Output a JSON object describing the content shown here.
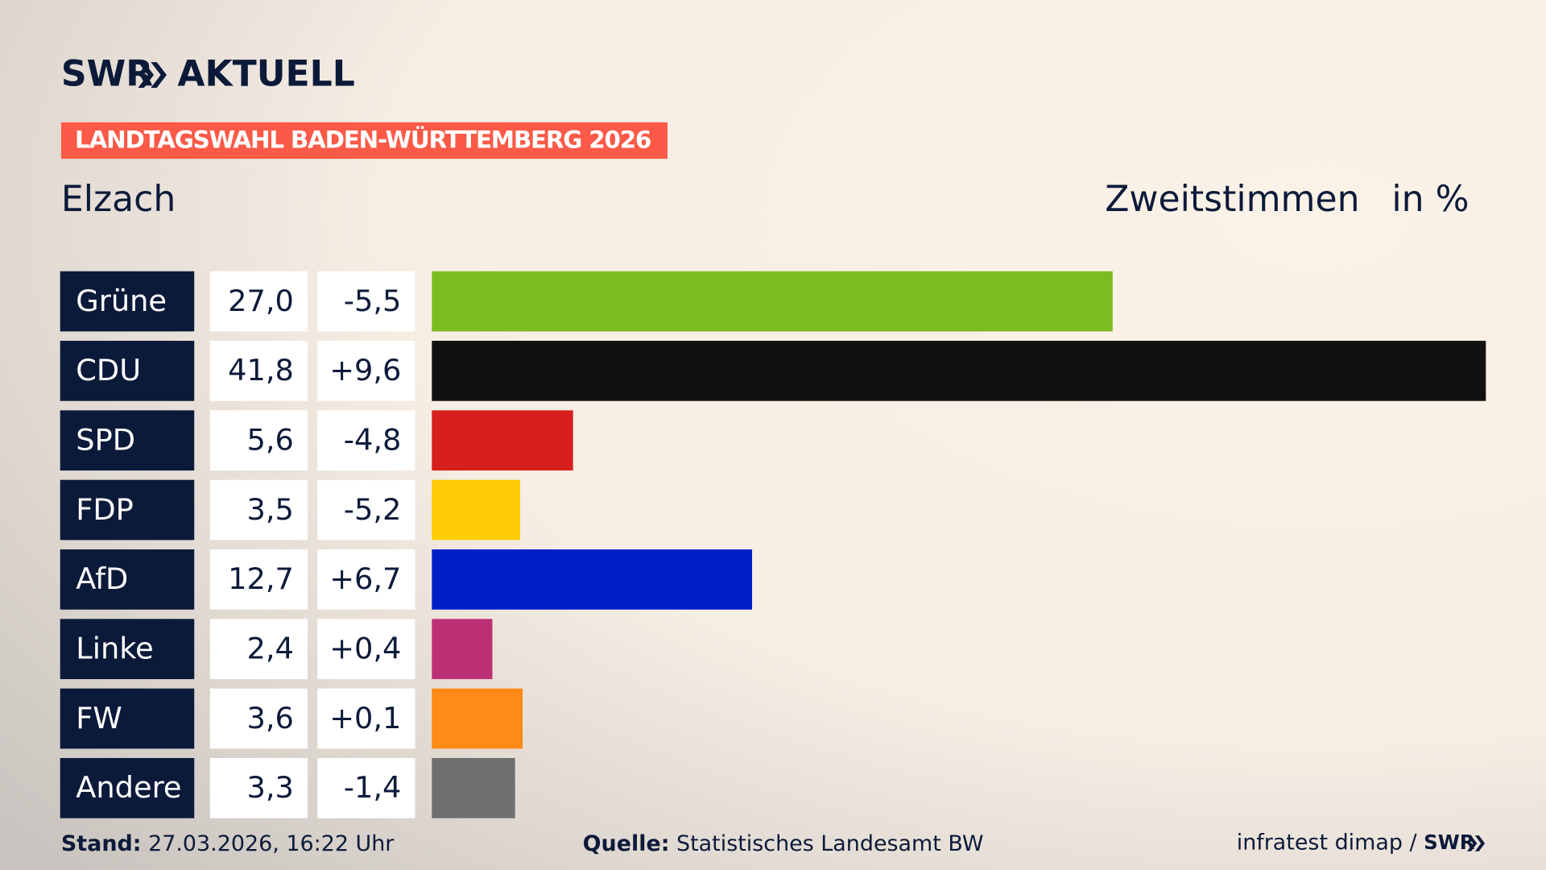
{
  "brand": "SWR",
  "brand_suffix": "AKTUELL",
  "chart_data": {
    "type": "bar",
    "kicker": "LANDTAGSWAHL BADEN-WÜRTTEMBERG 2026",
    "title": "Elzach",
    "subtitle": "Zweitstimmen",
    "unit": "in %",
    "categories": [
      "Grüne",
      "CDU",
      "SPD",
      "FDP",
      "AfD",
      "Linke",
      "FW",
      "Andere"
    ],
    "values": [
      27.0,
      41.8,
      5.6,
      3.5,
      12.7,
      2.4,
      3.6,
      3.3
    ],
    "value_labels": [
      "27,0",
      "41,8",
      "5,6",
      "3,5",
      "12,7",
      "2,4",
      "3,6",
      "3,3"
    ],
    "changes": [
      -5.5,
      9.6,
      -4.8,
      -5.2,
      6.7,
      0.4,
      0.1,
      -1.4
    ],
    "change_labels": [
      "-5,5",
      "+9,6",
      "-4,8",
      "-5,2",
      "+6,7",
      "+0,4",
      "+0,1",
      "-1,4"
    ],
    "colors": [
      "#7bbd1e",
      "#111111",
      "#d7201d",
      "#ffcc07",
      "#0020c7",
      "#bd3075",
      "#ff8a17",
      "#6f6f6f"
    ]
  },
  "footer": {
    "stand_label": "Stand:",
    "stand": "27.03.2026, 16:22 Uhr",
    "source_label": "Quelle:",
    "source": "Statistisches Landesamt BW",
    "credit": "infratest dimap /",
    "credit_brand": "SWR"
  }
}
